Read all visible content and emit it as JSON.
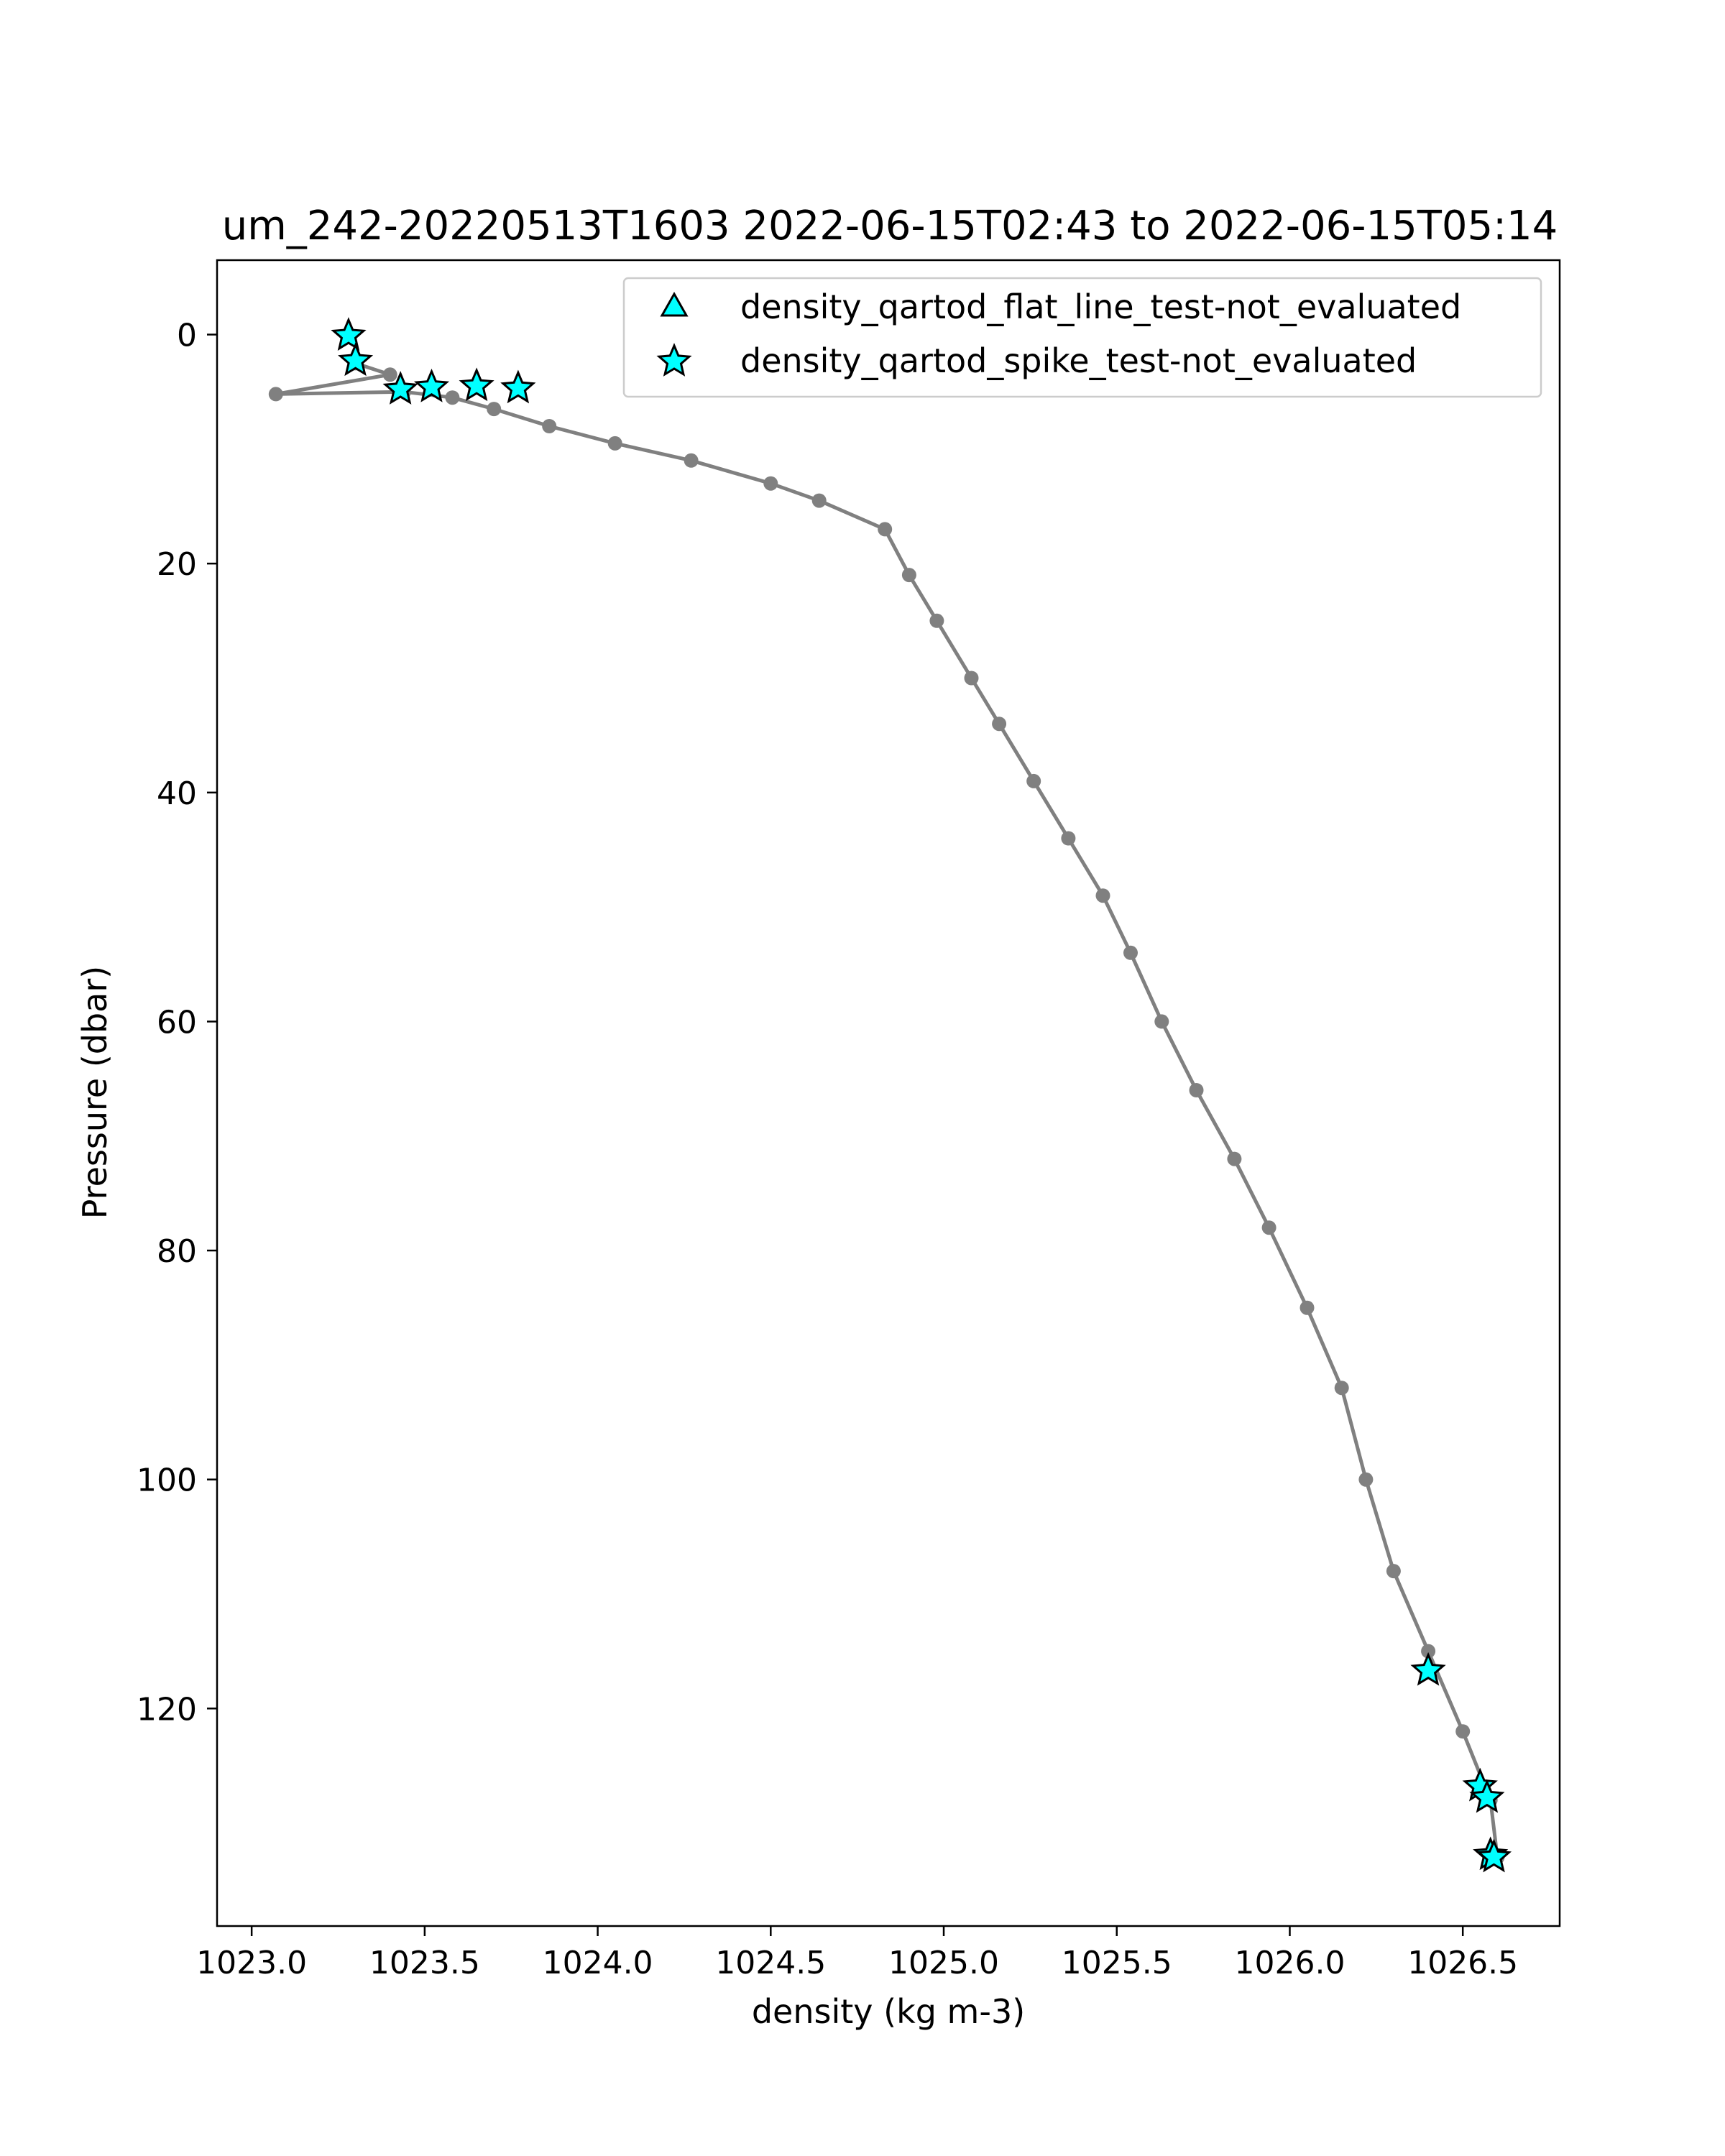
{
  "chart_data": {
    "type": "scatter",
    "title": "um_242-20220513T1603 2022-06-15T02:43 to 2022-06-15T05:14",
    "xlabel": "density (kg m-3)",
    "ylabel": "Pressure (dbar)",
    "xlim": [
      1022.9,
      1026.78
    ],
    "ylim": [
      139,
      -6.5
    ],
    "y_inverted": true,
    "x_ticks": [
      "1023.0",
      "1023.5",
      "1024.0",
      "1024.5",
      "1025.0",
      "1025.5",
      "1026.0",
      "1026.5"
    ],
    "x_tick_values": [
      1023.0,
      1023.5,
      1024.0,
      1024.5,
      1025.0,
      1025.5,
      1026.0,
      1026.5
    ],
    "y_ticks": [
      "0",
      "20",
      "40",
      "60",
      "80",
      "100",
      "120"
    ],
    "y_tick_values": [
      0,
      20,
      40,
      60,
      80,
      100,
      120
    ],
    "grid": false,
    "legend_position": "top-right",
    "line_color": "#808080",
    "marker_color": "#00ffff",
    "marker_edge_color": "#000000",
    "profile_line": {
      "x": [
        1023.3,
        1023.4,
        1023.07,
        1023.44,
        1023.58,
        1023.7,
        1023.86,
        1024.05,
        1024.27,
        1024.5,
        1024.64,
        1024.83,
        1024.9,
        1024.98,
        1025.08,
        1025.16,
        1025.26,
        1025.36,
        1025.46,
        1025.54,
        1025.63,
        1025.73,
        1025.84,
        1025.94,
        1026.05,
        1026.15,
        1026.22,
        1026.3,
        1026.4,
        1026.5,
        1026.58,
        1026.6
      ],
      "y": [
        2.5,
        3.5,
        5.2,
        5.0,
        5.5,
        6.5,
        8.0,
        9.5,
        11.0,
        13.0,
        14.5,
        17.0,
        21.0,
        25.0,
        30.0,
        34.0,
        39.0,
        44.0,
        49.0,
        54.0,
        60.0,
        66.0,
        72.0,
        78.0,
        85.0,
        92.0,
        100.0,
        108.0,
        115.0,
        122.0,
        128.0,
        133.0
      ]
    },
    "series": [
      {
        "name": "density_qartod_flat_line_test-not_evaluated",
        "marker": "triangle",
        "x": [],
        "y": []
      },
      {
        "name": "density_qartod_spike_test-not_evaluated",
        "marker": "star",
        "x": [
          1023.28,
          1023.3,
          1023.43,
          1023.52,
          1023.65,
          1023.77,
          1026.4,
          1026.55,
          1026.57,
          1026.58,
          1026.59
        ],
        "y": [
          0.1,
          2.3,
          4.8,
          4.6,
          4.5,
          4.7,
          116.7,
          126.8,
          127.8,
          132.8,
          133.0
        ]
      }
    ]
  }
}
